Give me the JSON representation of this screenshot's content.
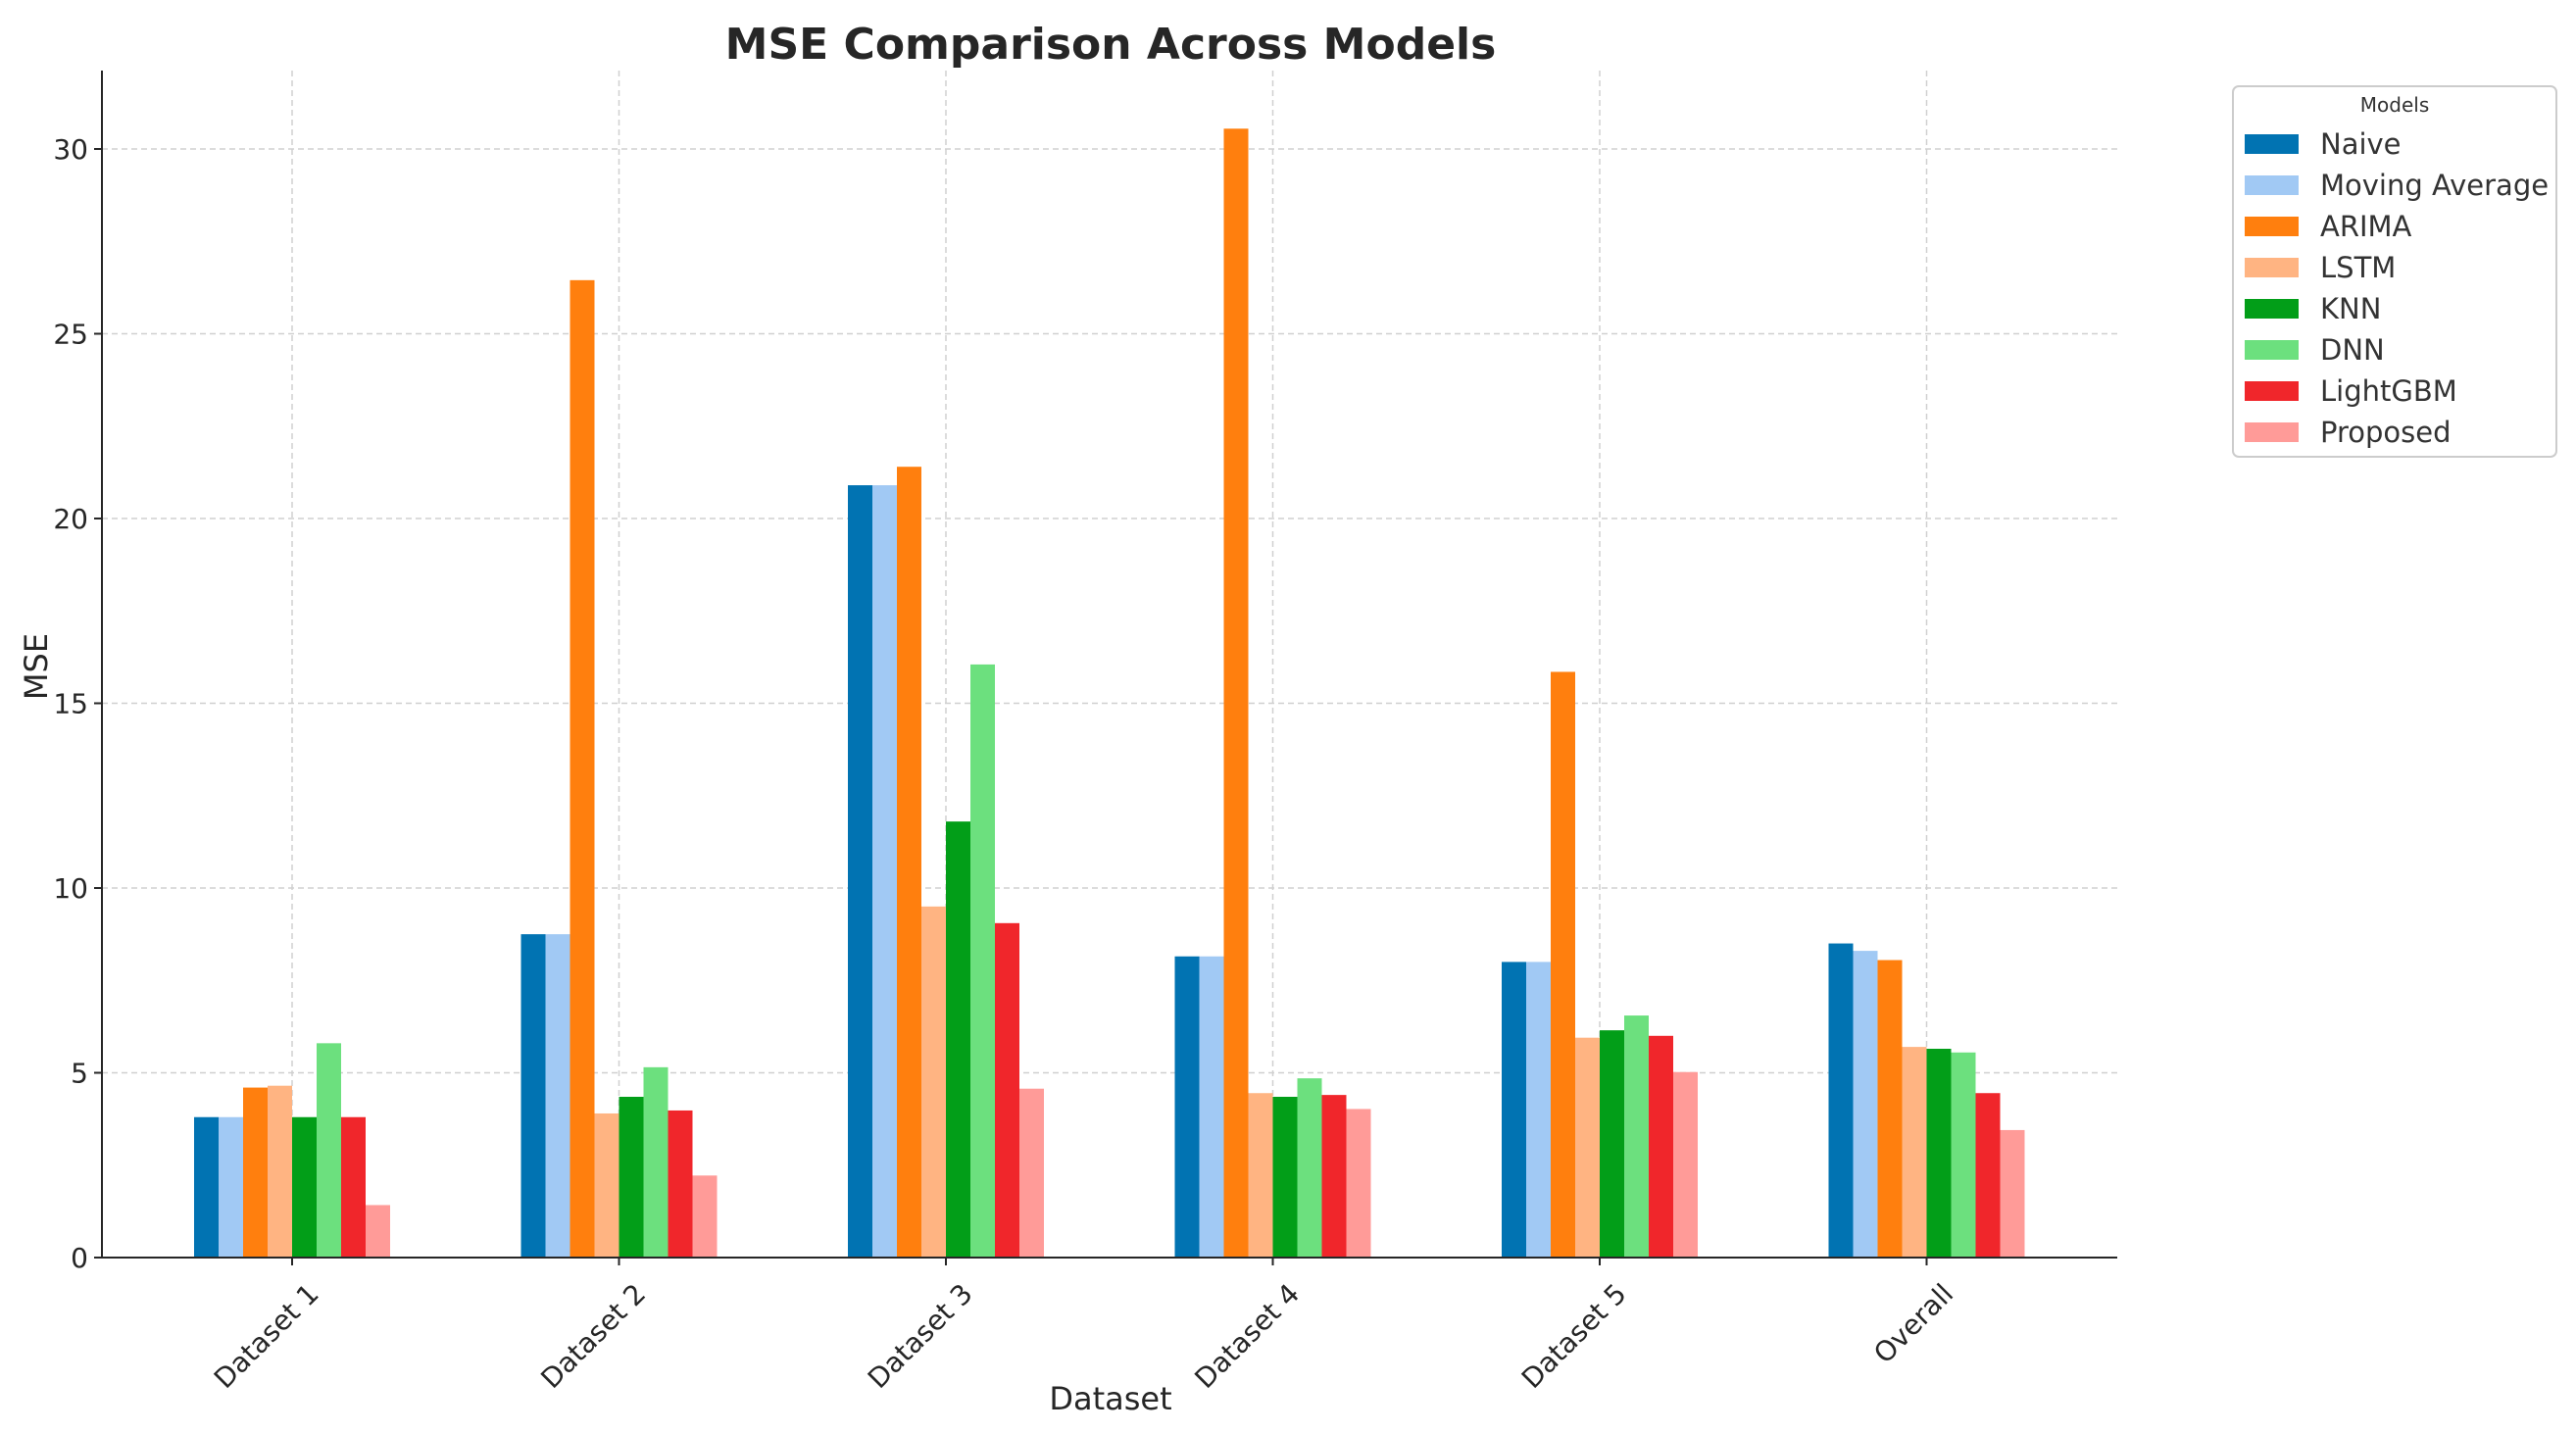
{
  "chart_data": {
    "type": "bar",
    "title": "MSE Comparison Across Models",
    "xlabel": "Dataset",
    "ylabel": "MSE",
    "ylim": [
      0,
      32
    ],
    "yticks": [
      0,
      5,
      10,
      15,
      20,
      25,
      30
    ],
    "grid": true,
    "legend_title": "Models",
    "legend_position": "outside top-right",
    "categories": [
      "Dataset 1",
      "Dataset 2",
      "Dataset 3",
      "Dataset 4",
      "Dataset 5",
      "Overall"
    ],
    "series": [
      {
        "name": "Naive",
        "color": "#0173b2",
        "values": [
          3.8,
          8.75,
          20.9,
          8.15,
          8.0,
          8.5
        ]
      },
      {
        "name": "Moving Average",
        "color": "#a1c9f4",
        "values": [
          3.8,
          8.75,
          20.9,
          8.15,
          8.0,
          8.3
        ]
      },
      {
        "name": "ARIMA",
        "color": "#ff7f0e",
        "values": [
          4.6,
          26.45,
          21.4,
          30.55,
          15.85,
          8.05
        ]
      },
      {
        "name": "LSTM",
        "color": "#ffb482",
        "values": [
          4.65,
          3.9,
          9.5,
          4.45,
          5.95,
          5.7
        ]
      },
      {
        "name": "KNN",
        "color": "#029e18",
        "values": [
          3.8,
          4.35,
          11.8,
          4.35,
          6.15,
          5.65
        ]
      },
      {
        "name": "DNN",
        "color": "#6ce07e",
        "values": [
          5.8,
          5.15,
          16.05,
          4.85,
          6.55,
          5.55
        ]
      },
      {
        "name": "LightGBM",
        "color": "#f0262b",
        "values": [
          3.8,
          3.98,
          9.05,
          4.4,
          6.0,
          4.45
        ]
      },
      {
        "name": "Proposed",
        "color": "#ff9b98",
        "values": [
          1.42,
          2.22,
          4.57,
          4.02,
          5.02,
          3.45
        ]
      }
    ]
  }
}
